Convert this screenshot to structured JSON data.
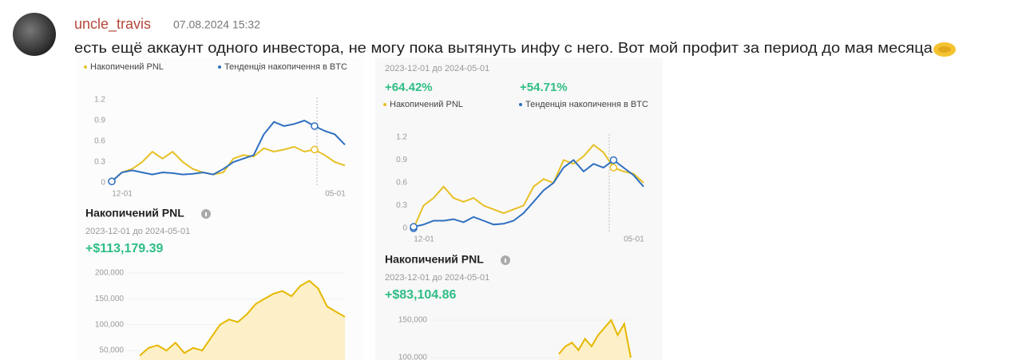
{
  "message": {
    "username": "uncle_travis",
    "timestamp": "07.08.2024 15:32",
    "text": "есть ещё аккаунт одного инвестора, не могу пока вытянуть инфу с него. Вот мой профит за период до мая месяца"
  },
  "images": [
    {
      "chart": {
        "type": "line",
        "ylim": [
          0,
          1.2
        ],
        "yticks": [
          0,
          0.3,
          0.6,
          0.9,
          1.2
        ],
        "x_labels": [
          "12-01",
          "05-01"
        ],
        "series": [
          {
            "name": "Накопичений PNL",
            "color": "#e8c025",
            "values": [
              0.02,
              0.15,
              0.2,
              0.3,
              0.45,
              0.35,
              0.45,
              0.3,
              0.2,
              0.15,
              0.12,
              0.15,
              0.35,
              0.4,
              0.38,
              0.5,
              0.45,
              0.48,
              0.52,
              0.45,
              0.48,
              0.4,
              0.3,
              0.25
            ]
          },
          {
            "name": "Тенденція накопичення в BTC",
            "color": "#2f6fc0",
            "values": [
              0.02,
              0.15,
              0.18,
              0.15,
              0.12,
              0.15,
              0.14,
              0.12,
              0.13,
              0.15,
              0.12,
              0.2,
              0.3,
              0.35,
              0.4,
              0.7,
              0.88,
              0.82,
              0.85,
              0.9,
              0.82,
              0.75,
              0.7,
              0.55
            ]
          }
        ]
      },
      "summary": {
        "title": "Накопичений PNL",
        "period": "2023-12-01 до 2024-05-01",
        "value": "+$113,179.39"
      },
      "area_chart": {
        "type": "area",
        "color": "#e6b800",
        "ylim": [
          30000,
          210000
        ],
        "yticks": [
          {
            "value": 50000,
            "label": "50,000"
          },
          {
            "value": 100000,
            "label": "100,000"
          },
          {
            "value": 150000,
            "label": "150,000"
          },
          {
            "value": 200000,
            "label": "200,000"
          }
        ],
        "values": [
          40000,
          55000,
          60000,
          50000,
          65000,
          45000,
          55000,
          50000,
          75000,
          100000,
          110000,
          105000,
          120000,
          140000,
          150000,
          160000,
          165000,
          155000,
          175000,
          185000,
          170000,
          135000,
          125000,
          115000
        ]
      }
    },
    {
      "header": {
        "period": "2023-12-01 до 2024-05-01",
        "pnl_change": "+64.42%",
        "btc_change": "+54.71%"
      },
      "chart": {
        "type": "line",
        "ylim": [
          0,
          1.2
        ],
        "yticks": [
          0,
          0.3,
          0.6,
          0.9,
          1.2
        ],
        "x_labels": [
          "12-01",
          "05-01"
        ],
        "series": [
          {
            "name": "Накопичений PNL",
            "color": "#e8c025",
            "values": [
              0.0,
              0.3,
              0.4,
              0.55,
              0.4,
              0.35,
              0.4,
              0.3,
              0.25,
              0.2,
              0.25,
              0.3,
              0.55,
              0.65,
              0.6,
              0.9,
              0.85,
              0.95,
              1.1,
              1.0,
              0.8,
              0.75,
              0.72,
              0.6
            ]
          },
          {
            "name": "Тенденція накопичення в BTC",
            "color": "#2f6fc0",
            "values": [
              0.02,
              0.05,
              0.1,
              0.1,
              0.12,
              0.08,
              0.15,
              0.1,
              0.05,
              0.06,
              0.1,
              0.2,
              0.35,
              0.5,
              0.6,
              0.8,
              0.9,
              0.75,
              0.85,
              0.8,
              0.9,
              0.8,
              0.7,
              0.55
            ]
          }
        ]
      },
      "summary": {
        "title": "Накопичений PNL",
        "period": "2023-12-01 до 2024-05-01",
        "value": "+$83,104.86"
      },
      "area_chart": {
        "type": "area",
        "color": "#e6b800",
        "ylim": [
          95000,
          160000
        ],
        "yticks": [
          {
            "value": 100000,
            "label": "100,000"
          },
          {
            "value": 150000,
            "label": "150,000"
          }
        ],
        "values": [
          105000,
          115000,
          120000,
          110000,
          125000,
          115000,
          130000,
          140000,
          150000,
          130000,
          145000,
          100000
        ]
      }
    }
  ]
}
